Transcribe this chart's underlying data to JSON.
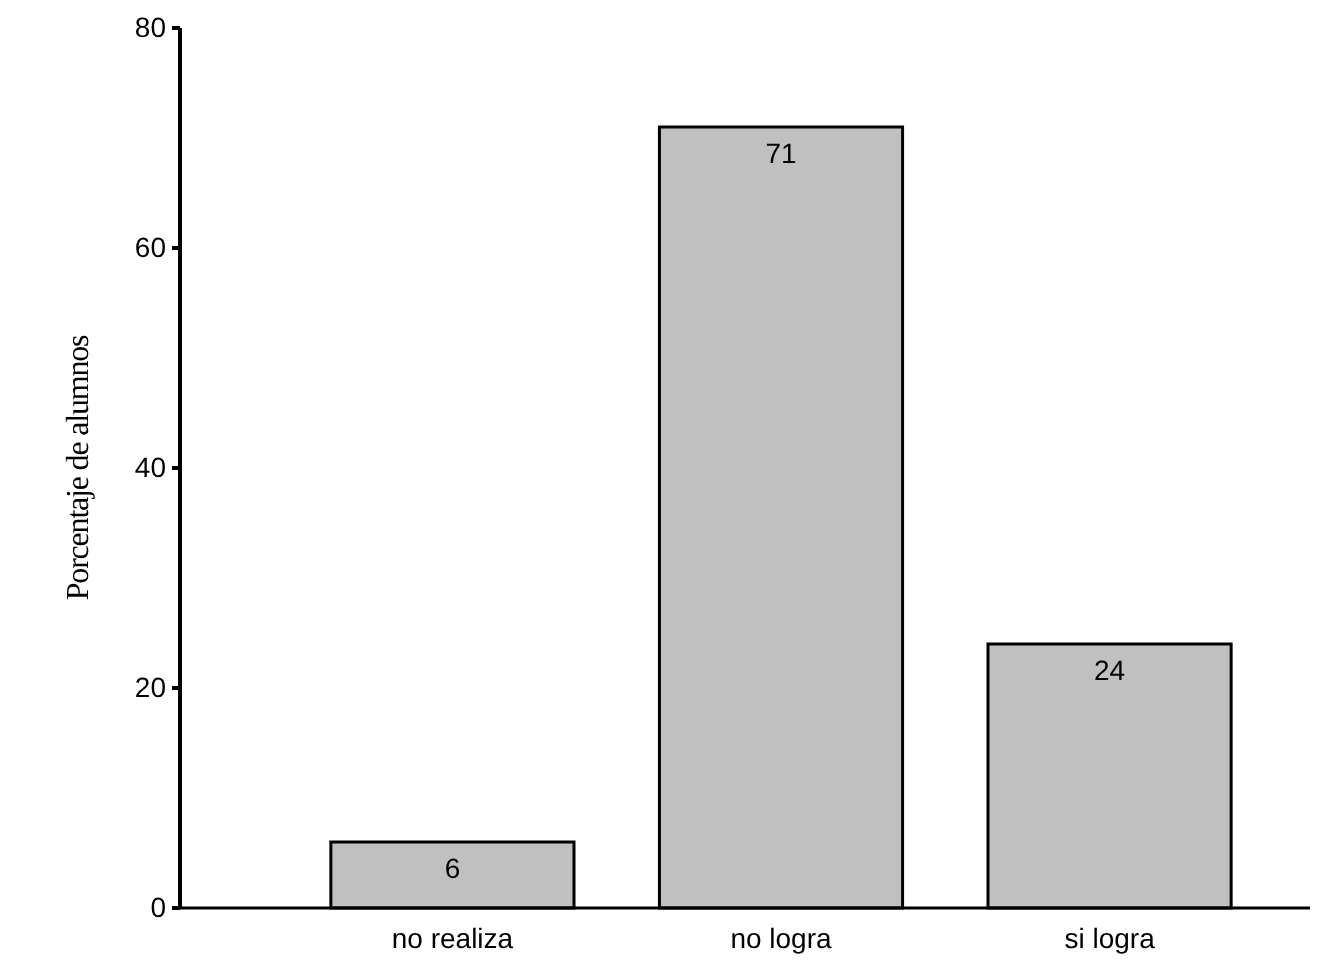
{
  "chart_data": {
    "type": "bar",
    "ylabel": "Porcentaje de alumnos",
    "categories": [
      "no realiza",
      "no logra",
      "si logra"
    ],
    "values": [
      6,
      71,
      24
    ],
    "color": "#c0c0c0",
    "ylim": [
      0,
      80
    ],
    "yticks": [
      0,
      20,
      40,
      60,
      80
    ],
    "data_labels": true,
    "grid": false
  }
}
